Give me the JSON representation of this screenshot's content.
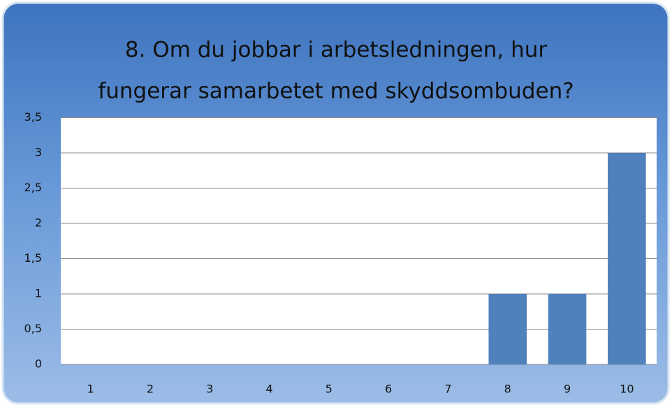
{
  "chart_data": {
    "type": "bar",
    "title": [
      "8. Om du jobbar i arbetsledningen, hur",
      "fungerar samarbetet med skyddsombuden?"
    ],
    "categories": [
      "1",
      "2",
      "3",
      "4",
      "5",
      "6",
      "7",
      "8",
      "9",
      "10"
    ],
    "values": [
      0,
      0,
      0,
      0,
      0,
      0,
      0,
      1,
      1,
      3
    ],
    "color": "#4f81bd",
    "ylim": [
      0,
      3.5
    ],
    "yticks": [
      0,
      {
        "value": 0.5,
        "label": "0,5"
      },
      1,
      {
        "value": 1.5,
        "label": "1,5"
      },
      2,
      {
        "value": 2.5,
        "label": "2,5"
      },
      3,
      {
        "value": 3.5,
        "label": "3,5"
      }
    ],
    "grid": true
  }
}
